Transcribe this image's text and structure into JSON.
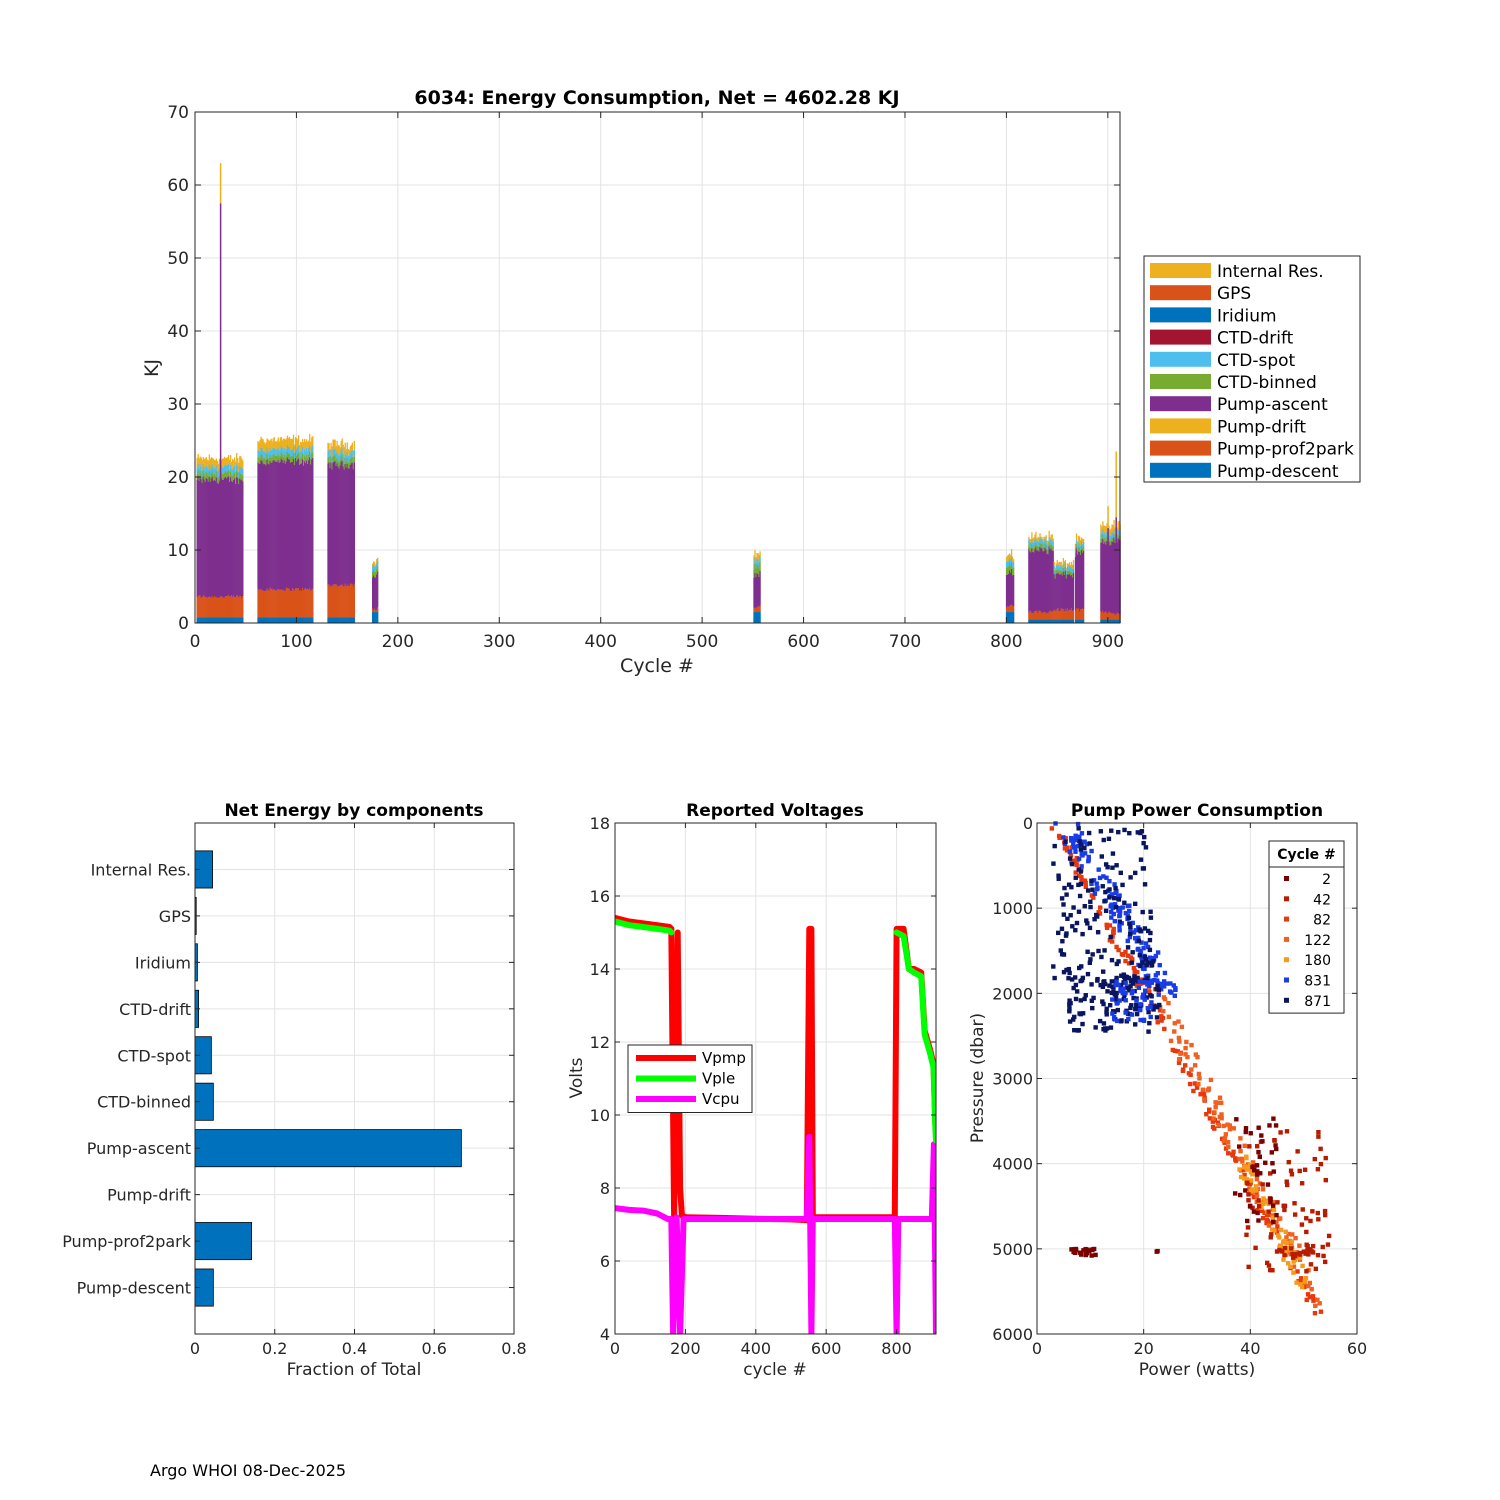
{
  "footer": {
    "text": "Argo WHOI 08-Dec-2025"
  },
  "chart_data": [
    {
      "type": "area",
      "title": "6034: Energy Consumption,  Net = 4602.28 KJ",
      "xlabel": "Cycle #",
      "ylabel": "KJ",
      "xlim": [
        0,
        912
      ],
      "ylim": [
        0,
        70
      ],
      "xticks": [
        0,
        100,
        200,
        300,
        400,
        500,
        600,
        700,
        800,
        900
      ],
      "yticks": [
        0,
        10,
        20,
        30,
        40,
        50,
        60,
        70
      ],
      "grid": true,
      "legend_position": "right",
      "legend": [
        {
          "name": "Internal Res.",
          "color": "#EDB120"
        },
        {
          "name": "GPS",
          "color": "#D95319"
        },
        {
          "name": "Iridium",
          "color": "#0072BD"
        },
        {
          "name": "CTD-drift",
          "color": "#A2142F"
        },
        {
          "name": "CTD-spot",
          "color": "#4DBEEE"
        },
        {
          "name": "CTD-binned",
          "color": "#77AC30"
        },
        {
          "name": "Pump-ascent",
          "color": "#7E2F8E"
        },
        {
          "name": "Pump-drift",
          "color": "#EDB120"
        },
        {
          "name": "Pump-prof2park",
          "color": "#D95319"
        },
        {
          "name": "Pump-descent",
          "color": "#0072BD"
        }
      ],
      "segments": [
        {
          "x": [
            2,
            47
          ],
          "pump_descent": 0.8,
          "pump_prof2park": 2.8,
          "pump_ascent": 16.0,
          "ctd_binned": 0.8,
          "ctd_spot": 0.9,
          "internal_res": 1.2
        },
        {
          "x": [
            62,
            116
          ],
          "pump_descent": 0.8,
          "pump_prof2park": 3.8,
          "pump_ascent": 17.5,
          "ctd_binned": 0.8,
          "ctd_spot": 0.9,
          "internal_res": 1.3
        },
        {
          "x": [
            131,
            157
          ],
          "pump_descent": 0.8,
          "pump_prof2park": 4.4,
          "pump_ascent": 16.5,
          "ctd_binned": 0.8,
          "ctd_spot": 0.9,
          "internal_res": 1.1
        },
        {
          "x": [
            175,
            180
          ],
          "pump_descent": 1.5,
          "pump_prof2park": 0.5,
          "pump_ascent": 4.5,
          "ctd_binned": 0.8,
          "ctd_spot": 0.7,
          "internal_res": 0.6
        },
        {
          "x": [
            551,
            557
          ],
          "pump_descent": 1.5,
          "pump_prof2park": 0.7,
          "pump_ascent": 4.5,
          "ctd_binned": 1.2,
          "ctd_spot": 0.8,
          "internal_res": 0.8
        },
        {
          "x": [
            800,
            807
          ],
          "pump_descent": 1.5,
          "pump_prof2park": 0.8,
          "pump_ascent": 4.5,
          "ctd_binned": 1.0,
          "ctd_spot": 0.8,
          "internal_res": 0.6
        },
        {
          "x": [
            822,
            846
          ],
          "pump_descent": 0.5,
          "pump_prof2park": 1.0,
          "pump_ascent": 8.5,
          "ctd_binned": 0.6,
          "ctd_spot": 0.7,
          "internal_res": 0.6
        },
        {
          "x": [
            847,
            866
          ],
          "pump_descent": 0.5,
          "pump_prof2park": 1.3,
          "pump_ascent": 4.8,
          "ctd_binned": 0.5,
          "ctd_spot": 0.6,
          "internal_res": 0.5
        },
        {
          "x": [
            868,
            876
          ],
          "pump_descent": 0.5,
          "pump_prof2park": 1.3,
          "pump_ascent": 7.8,
          "ctd_binned": 0.6,
          "ctd_spot": 0.6,
          "internal_res": 0.6
        },
        {
          "x": [
            893,
            905
          ],
          "pump_descent": 0.5,
          "pump_prof2park": 1.0,
          "pump_ascent": 9.5,
          "ctd_binned": 0.6,
          "ctd_spot": 0.7,
          "internal_res": 0.9
        },
        {
          "x": [
            906,
            912
          ],
          "pump_descent": 0.5,
          "pump_prof2park": 0.7,
          "pump_ascent": 10.0,
          "ctd_binned": 0.5,
          "ctd_spot": 0.7,
          "internal_res": 1.0
        }
      ],
      "spikes": [
        {
          "x": 25,
          "total": 63.0,
          "pump_ascent_to": 57.5
        },
        {
          "x": 908,
          "total": 23.5,
          "pump_ascent_to": 14.5
        },
        {
          "x": 900,
          "total": 16.0,
          "pump_ascent_to": 13.0
        }
      ]
    },
    {
      "type": "bar",
      "orientation": "horizontal",
      "title": "Net Energy by components",
      "xlabel": "Fraction of Total",
      "xlim": [
        0,
        0.8
      ],
      "xticks": [
        0,
        0.2,
        0.4,
        0.6,
        0.8
      ],
      "xtick_labels": [
        "0",
        "0.2",
        "0.4",
        "0.6",
        "0.8"
      ],
      "grid": true,
      "bar_color": "#0072BD",
      "categories": [
        "Internal Res.",
        "GPS",
        "Iridium",
        "CTD-drift",
        "CTD-spot",
        "CTD-binned",
        "Pump-ascent",
        "Pump-drift",
        "Pump-prof2park",
        "Pump-descent"
      ],
      "values": [
        0.044,
        0.003,
        0.006,
        0.009,
        0.041,
        0.046,
        0.668,
        0.0,
        0.142,
        0.046
      ]
    },
    {
      "type": "line",
      "title": "Reported Voltages",
      "xlabel": "cycle #",
      "ylabel": "Volts",
      "xlim": [
        0,
        912
      ],
      "ylim": [
        4,
        18
      ],
      "xticks": [
        0,
        200,
        400,
        600,
        800
      ],
      "yticks": [
        4,
        6,
        8,
        10,
        12,
        14,
        16,
        18
      ],
      "grid": true,
      "legend_position": "left",
      "series": [
        {
          "name": "Vpmp",
          "color": "#FF0000",
          "segments": [
            {
              "x": [
                0,
                40,
                80,
                120,
                155,
                160
              ],
              "y": [
                15.4,
                15.3,
                15.25,
                15.2,
                15.15,
                15.1
              ]
            },
            {
              "x": [
                160,
                168,
                178,
                185,
                190,
                200
              ],
              "y": [
                15.1,
                7.2,
                15.0,
                8.0,
                7.25,
                7.2
              ]
            },
            {
              "x": [
                200,
                300,
                400,
                500,
                545
              ],
              "y": [
                7.2,
                7.18,
                7.16,
                7.14,
                7.12
              ]
            },
            {
              "x": [
                545,
                552,
                558,
                562
              ],
              "y": [
                7.12,
                15.1,
                15.1,
                7.2
              ]
            },
            {
              "x": [
                562,
                650,
                750,
                795
              ],
              "y": [
                7.2,
                7.2,
                7.2,
                7.2
              ]
            },
            {
              "x": [
                795,
                800,
                820,
                835,
                850,
                870,
                880,
                895,
                905,
                910,
                912
              ],
              "y": [
                7.2,
                15.1,
                15.1,
                14.0,
                14.0,
                13.9,
                12.3,
                11.8,
                11.4,
                9.8,
                9.4
              ]
            }
          ]
        },
        {
          "name": "Vple",
          "color": "#00FF00",
          "segments": [
            {
              "x": [
                0,
                40,
                80,
                120,
                155,
                160
              ],
              "y": [
                15.3,
                15.2,
                15.15,
                15.1,
                15.05,
                15.0
              ]
            },
            {
              "x": [
                800,
                820,
                835,
                850,
                870,
                880,
                895,
                905,
                910,
                912
              ],
              "y": [
                15.0,
                14.9,
                14.0,
                13.9,
                13.8,
                12.2,
                11.7,
                11.3,
                9.7,
                9.3
              ]
            }
          ]
        },
        {
          "name": "Vcpu",
          "color": "#FF00FF",
          "segments": [
            {
              "x": [
                0,
                40,
                80,
                120,
                140,
                150,
                160
              ],
              "y": [
                7.45,
                7.4,
                7.38,
                7.3,
                7.2,
                7.15,
                7.15
              ]
            },
            {
              "x": [
                160,
                165,
                175,
                185,
                195
              ],
              "y": [
                7.15,
                4.0,
                7.2,
                4.0,
                7.15
              ]
            },
            {
              "x": [
                195,
                545
              ],
              "y": [
                7.15,
                7.15
              ]
            },
            {
              "x": [
                545,
                552,
                558,
                562
              ],
              "y": [
                7.15,
                9.4,
                4.0,
                7.15
              ]
            },
            {
              "x": [
                562,
                795
              ],
              "y": [
                7.15,
                7.15
              ]
            },
            {
              "x": [
                795,
                800,
                805,
                900,
                906,
                912
              ],
              "y": [
                7.15,
                4.0,
                7.15,
                7.15,
                9.2,
                4.0
              ]
            }
          ]
        }
      ]
    },
    {
      "type": "scatter",
      "title": "Pump Power Consumption",
      "xlabel": "Power (watts)",
      "ylabel": "Pressure (dbar)",
      "xlim": [
        0,
        60
      ],
      "ylim": [
        0,
        6000
      ],
      "y_reversed": true,
      "xticks": [
        0,
        20,
        40,
        60
      ],
      "yticks": [
        0,
        1000,
        2000,
        3000,
        4000,
        5000,
        6000
      ],
      "grid": true,
      "legend_title": "Cycle #",
      "legend_position": "top-right",
      "series": [
        {
          "name": "2",
          "color": "#7B0000"
        },
        {
          "name": "42",
          "color": "#B81C00"
        },
        {
          "name": "82",
          "color": "#E8380D"
        },
        {
          "name": "122",
          "color": "#F06020"
        },
        {
          "name": "180",
          "color": "#F59B1B"
        },
        {
          "name": "831",
          "color": "#1A3CE6"
        },
        {
          "name": "871",
          "color": "#0A1560"
        }
      ],
      "clusters": [
        {
          "series": "82",
          "kind": "line",
          "x": [
            3,
            54
          ],
          "y": [
            0,
            5900
          ],
          "n": 170,
          "jitter_x": 0.8,
          "jitter_y": 60
        },
        {
          "series": "122",
          "kind": "line",
          "x": [
            22,
            53
          ],
          "y": [
            2000,
            5600
          ],
          "n": 110,
          "jitter_x": 1.2,
          "jitter_y": 120
        },
        {
          "series": "180",
          "kind": "line",
          "x": [
            38,
            50
          ],
          "y": [
            3900,
            5400
          ],
          "n": 60,
          "jitter_x": 1.0,
          "jitter_y": 120
        },
        {
          "series": "42",
          "kind": "box",
          "x": [
            39,
            55
          ],
          "y": [
            3600,
            5300
          ],
          "n": 70
        },
        {
          "series": "2",
          "kind": "box",
          "x": [
            37,
            46
          ],
          "y": [
            3450,
            4700
          ],
          "n": 40
        },
        {
          "series": "2",
          "kind": "box",
          "x": [
            6,
            11
          ],
          "y": [
            5000,
            5080
          ],
          "n": 20
        },
        {
          "series": "2",
          "kind": "box",
          "x": [
            22,
            23
          ],
          "y": [
            5020,
            5060
          ],
          "n": 2
        },
        {
          "series": "42",
          "kind": "box",
          "x": [
            44,
            55
          ],
          "y": [
            4950,
            5100
          ],
          "n": 25
        },
        {
          "series": "831",
          "kind": "line",
          "x": [
            5,
            25
          ],
          "y": [
            0,
            2000
          ],
          "n": 140,
          "jitter_x": 2.0,
          "jitter_y": 80
        },
        {
          "series": "871",
          "kind": "box",
          "x": [
            3,
            22
          ],
          "y": [
            50,
            1900
          ],
          "n": 170
        },
        {
          "series": "871",
          "kind": "box",
          "x": [
            6,
            23
          ],
          "y": [
            1800,
            2450
          ],
          "n": 110
        },
        {
          "series": "831",
          "kind": "box",
          "x": [
            14,
            22
          ],
          "y": [
            1850,
            2350
          ],
          "n": 45
        }
      ]
    }
  ]
}
